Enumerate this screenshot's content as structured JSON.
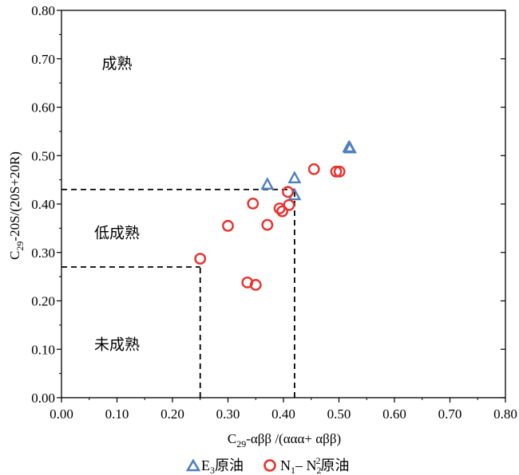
{
  "chart_data": {
    "type": "scatter",
    "xlim": [
      0,
      0.8
    ],
    "ylim": [
      0,
      0.8
    ],
    "xticks": [
      "0.00",
      "0.10",
      "0.20",
      "0.30",
      "0.40",
      "0.50",
      "0.60",
      "0.70",
      "0.80"
    ],
    "yticks": [
      "0.00",
      "0.10",
      "0.20",
      "0.30",
      "0.40",
      "0.50",
      "0.60",
      "0.70",
      "0.80"
    ],
    "xlabel": {
      "c": "C",
      "sub": "29",
      "rest": "-αββ /(ααα+ αββ)"
    },
    "ylabel": {
      "c": "C",
      "sub": "29",
      "rest": "-20S/(20S+20R)"
    },
    "grid": false,
    "regions": [
      {
        "label": "成熟",
        "x": 0.1,
        "y": 0.68
      },
      {
        "label": "低成熟",
        "x": 0.1,
        "y": 0.33
      },
      {
        "label": "未成熟",
        "x": 0.1,
        "y": 0.1
      }
    ],
    "boundaries": [
      {
        "x": [
          0,
          0.42
        ],
        "y": [
          0.43,
          0.43
        ]
      },
      {
        "x": [
          0.42,
          0.42
        ],
        "y": [
          0,
          0.43
        ]
      },
      {
        "x": [
          0,
          0.25
        ],
        "y": [
          0.27,
          0.27
        ]
      },
      {
        "x": [
          0.25,
          0.25
        ],
        "y": [
          0,
          0.27
        ]
      }
    ],
    "series": [
      {
        "marker": "triangle",
        "color": "#4f81bd",
        "legend": {
          "pre": "E",
          "sub": "3",
          "post": "原油"
        },
        "points": [
          [
            0.371,
            0.44
          ],
          [
            0.42,
            0.453
          ],
          [
            0.42,
            0.418
          ],
          [
            0.518,
            0.517
          ],
          [
            0.52,
            0.515
          ]
        ]
      },
      {
        "marker": "circle",
        "color": "#e8322e",
        "legend": {
          "pre": "N",
          "sub": "1",
          "mid": "– N",
          "sub2": "2",
          "sup": "2",
          "post": "原油"
        },
        "points": [
          [
            0.25,
            0.287
          ],
          [
            0.3,
            0.355
          ],
          [
            0.335,
            0.238
          ],
          [
            0.35,
            0.233
          ],
          [
            0.345,
            0.401
          ],
          [
            0.371,
            0.357
          ],
          [
            0.393,
            0.391
          ],
          [
            0.398,
            0.385
          ],
          [
            0.408,
            0.425
          ],
          [
            0.41,
            0.398
          ],
          [
            0.455,
            0.472
          ],
          [
            0.495,
            0.467
          ],
          [
            0.501,
            0.467
          ]
        ]
      }
    ]
  }
}
